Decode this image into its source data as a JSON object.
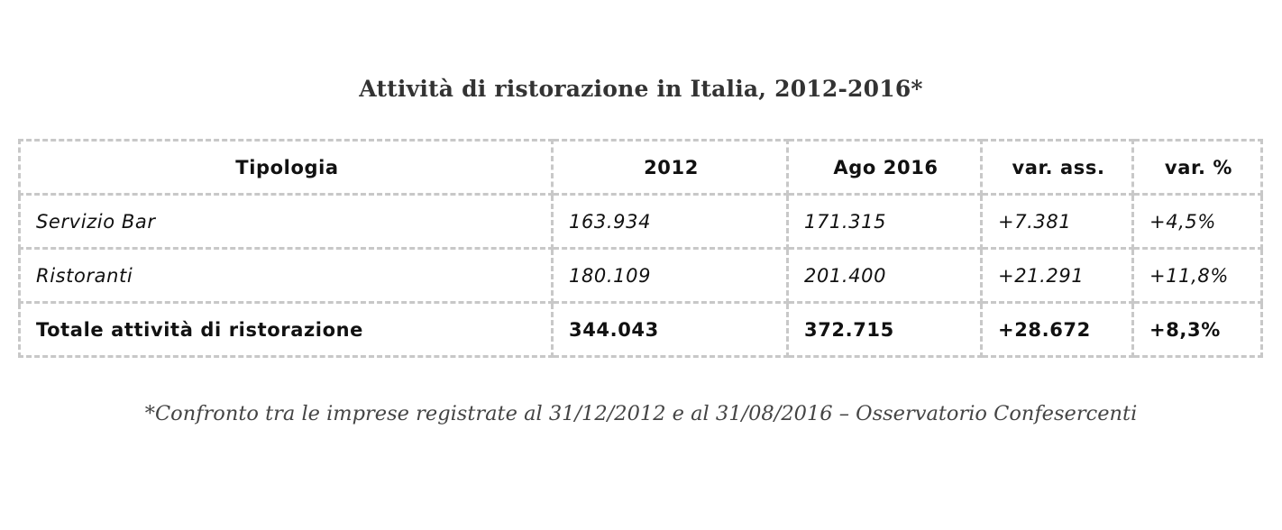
{
  "title": "Attività di ristorazione in Italia, 2012-2016*",
  "table": {
    "headers": [
      "Tipologia",
      "2012",
      "Ago 2016",
      "var. ass.",
      "var. %"
    ],
    "rows": [
      [
        "Servizio Bar",
        "163.934",
        "171.315",
        "+7.381",
        "+4,5%"
      ],
      [
        "Ristoranti",
        "180.109",
        "201.400",
        "+21.291",
        "+11,8%"
      ]
    ],
    "total": [
      "Totale attività di ristorazione",
      "344.043",
      "372.715",
      "+28.672",
      "+8,3%"
    ]
  },
  "footnote": "*Confronto tra le imprese registrate al 31/12/2012 e al 31/08/2016 – Osservatorio Confesercenti"
}
